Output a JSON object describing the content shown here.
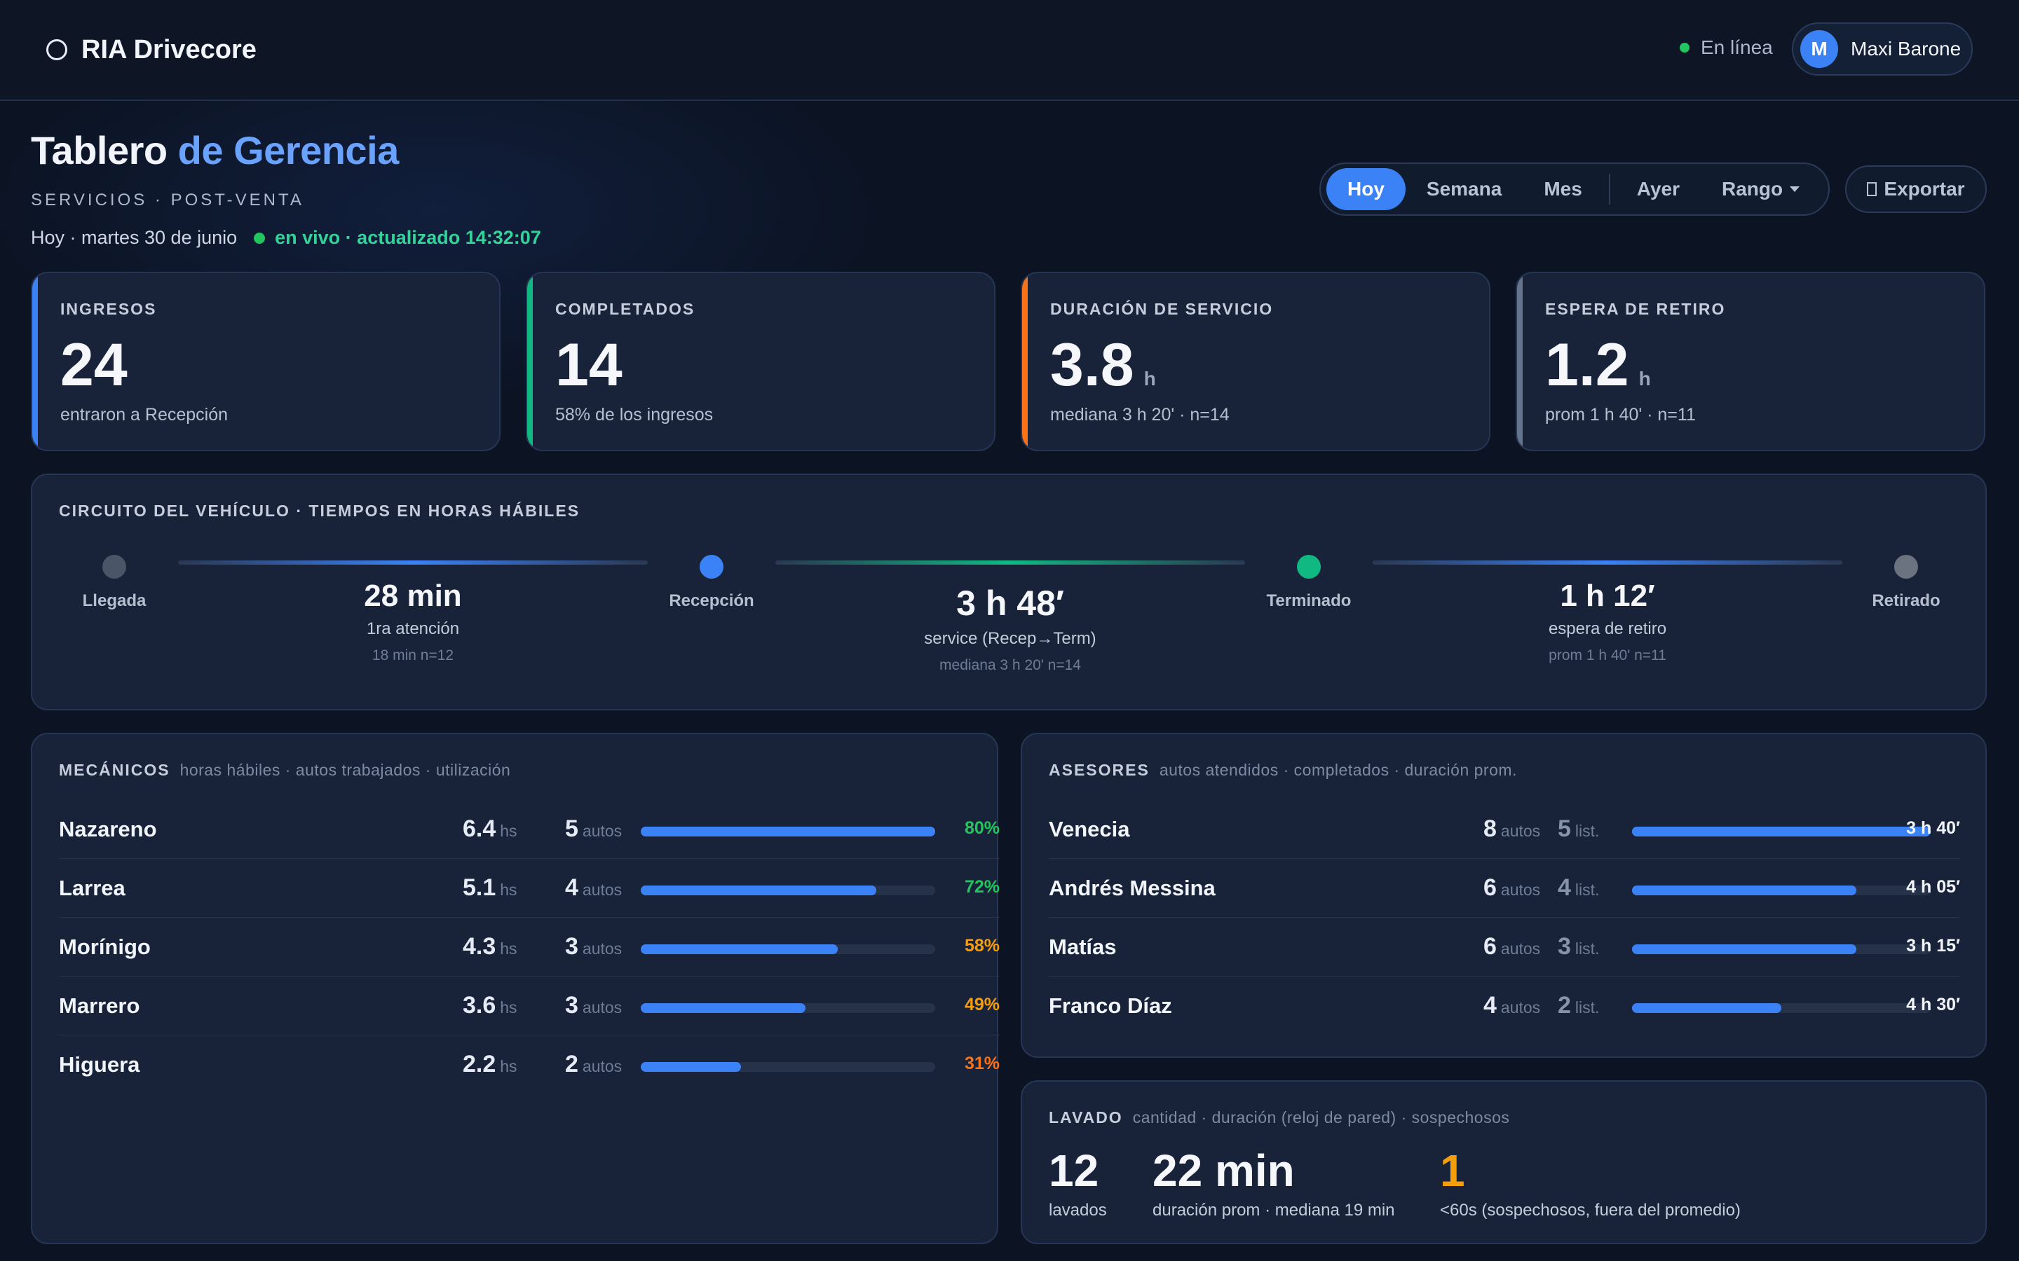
{
  "app": {
    "name": "RIA Drivecore",
    "status": "En línea",
    "user_initial": "M",
    "user_name": "Maxi Barone"
  },
  "header": {
    "title_part1": "Tablero ",
    "title_part2": "de Gerencia",
    "subtitle": "SERVICIOS · POST-VENTA",
    "date": "Hoy · martes 30 de junio",
    "live": "en vivo · actualizado 14:32:07"
  },
  "range_tabs": [
    {
      "label": "Hoy",
      "active": true
    },
    {
      "label": "Semana"
    },
    {
      "label": "Mes"
    },
    {
      "label": "Ayer"
    },
    {
      "label": "Rango"
    }
  ],
  "export_label": "Exportar",
  "kpis": [
    {
      "label": "INGRESOS",
      "value": "24",
      "unit": "",
      "note": "entraron a Recepción",
      "color": "#3b82f6"
    },
    {
      "label": "COMPLETADOS",
      "value": "14",
      "unit": "",
      "note": "58% de los ingresos",
      "color": "#10b981"
    },
    {
      "label": "DURACIÓN DE SERVICIO",
      "value": "3.8",
      "unit": "h",
      "note": "mediana 3 h 20' · n=14",
      "color": "#f97316"
    },
    {
      "label": "ESPERA DE RETIRO",
      "value": "1.2",
      "unit": "h",
      "note": "prom 1 h 40' · n=11",
      "color": "#64748b"
    }
  ],
  "circuit": {
    "title": "CIRCUITO DEL VEHÍCULO · TIEMPOS EN HORAS HÁBILES",
    "nodes": [
      {
        "label": "Llegada",
        "color": "#4b5568"
      },
      {
        "label": "Recepción",
        "color": "#3b82f6"
      },
      {
        "label": "Terminado",
        "color": "#10b981"
      },
      {
        "label": "Retirado",
        "color": "#6b7280"
      }
    ],
    "segments": [
      {
        "big": "28 min",
        "sub": "1ra atención",
        "small": "18 min   n=12",
        "color": "#3b82f6"
      },
      {
        "big": "3 h 48′",
        "sub": "service (Recep→Term)",
        "small": "mediana 3 h 20'   n=14",
        "color": "#10b981"
      },
      {
        "big": "1 h 12′",
        "sub": "espera de retiro",
        "small": "prom 1 h 40'   n=11",
        "color": "#3b82f6"
      }
    ]
  },
  "mechanics": {
    "title": "MECÁNICOS",
    "hint": "horas hábiles · autos trabajados · utilización",
    "hours_unit": "hs",
    "cars_unit": "autos",
    "rows": [
      {
        "name": "Nazareno",
        "hours": "6.4",
        "cars": "5",
        "pct": "80%",
        "util": 1.0,
        "color": "#22c55e"
      },
      {
        "name": "Larrea",
        "hours": "5.1",
        "cars": "4",
        "pct": "72%",
        "util": 0.8,
        "color": "#22c55e"
      },
      {
        "name": "Morínigo",
        "hours": "4.3",
        "cars": "3",
        "pct": "58%",
        "util": 0.67,
        "color": "#f59e0b"
      },
      {
        "name": "Marrero",
        "hours": "3.6",
        "cars": "3",
        "pct": "49%",
        "util": 0.56,
        "color": "#f59e0b"
      },
      {
        "name": "Higuera",
        "hours": "2.2",
        "cars": "2",
        "pct": "31%",
        "util": 0.34,
        "color": "#f97316"
      }
    ]
  },
  "advisors": {
    "title": "ASESORES",
    "hint": "autos atendidos · completados · duración prom.",
    "cars_unit": "autos",
    "done_unit": "list.",
    "rows": [
      {
        "name": "Venecia",
        "cars": "8",
        "done": "5",
        "dur": "3 h 40′",
        "fill": 1.0
      },
      {
        "name": "Andrés Messina",
        "cars": "6",
        "done": "4",
        "dur": "4 h 05′",
        "fill": 0.75
      },
      {
        "name": "Matías",
        "cars": "6",
        "done": "3",
        "dur": "3 h 15′",
        "fill": 0.75
      },
      {
        "name": "Franco Díaz",
        "cars": "4",
        "done": "2",
        "dur": "4 h 30′",
        "fill": 0.5
      }
    ]
  },
  "wash": {
    "title": "LAVADO",
    "hint": "cantidad · duración (reloj de pared) · sospechosos",
    "count": "12",
    "count_label": "lavados",
    "dur": "22 min",
    "dur_label": "duración prom · mediana 19 min",
    "sus": "1",
    "sus_label": "<60s (sospechosos, fuera del promedio)",
    "sus_color": "#f59e0b"
  }
}
